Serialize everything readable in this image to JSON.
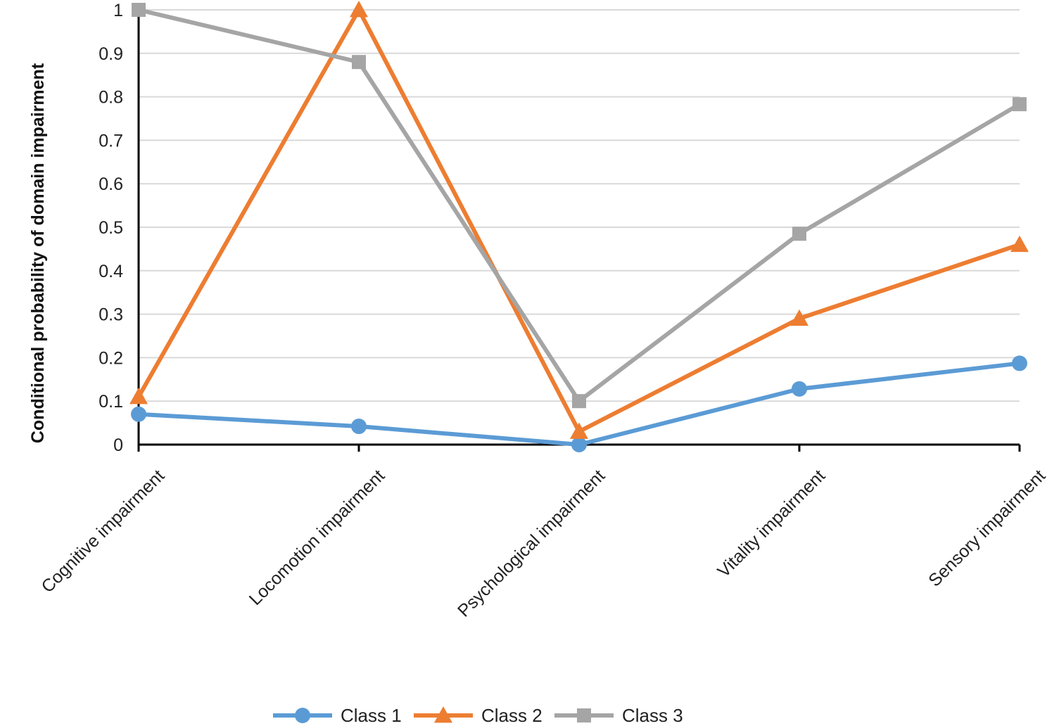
{
  "chart_data": {
    "type": "line",
    "categories": [
      "Cognitive impairment",
      "Locomotion impairment",
      "Psychological impairment",
      "Vitality impairment",
      "Sensory impairment"
    ],
    "series": [
      {
        "name": "Class 1",
        "color": "#5b9bd5",
        "marker": "circle",
        "values": [
          0.07,
          0.042,
          0.0,
          0.128,
          0.187
        ]
      },
      {
        "name": "Class 2",
        "color": "#ed7d31",
        "marker": "triangle",
        "values": [
          0.11,
          1.0,
          0.03,
          0.29,
          0.46
        ]
      },
      {
        "name": "Class 3",
        "color": "#a5a5a5",
        "marker": "square",
        "values": [
          1.0,
          0.88,
          0.1,
          0.485,
          0.783
        ]
      }
    ],
    "title": "",
    "xlabel": "",
    "ylabel": "Conditional probability of domain impairment",
    "ylim": [
      0,
      1
    ],
    "yticks": [
      "0",
      "0.1",
      "0.2",
      "0.3",
      "0.4",
      "0.5",
      "0.6",
      "0.7",
      "0.8",
      "0.9",
      "1"
    ],
    "grid": true,
    "legend": "bottom"
  }
}
